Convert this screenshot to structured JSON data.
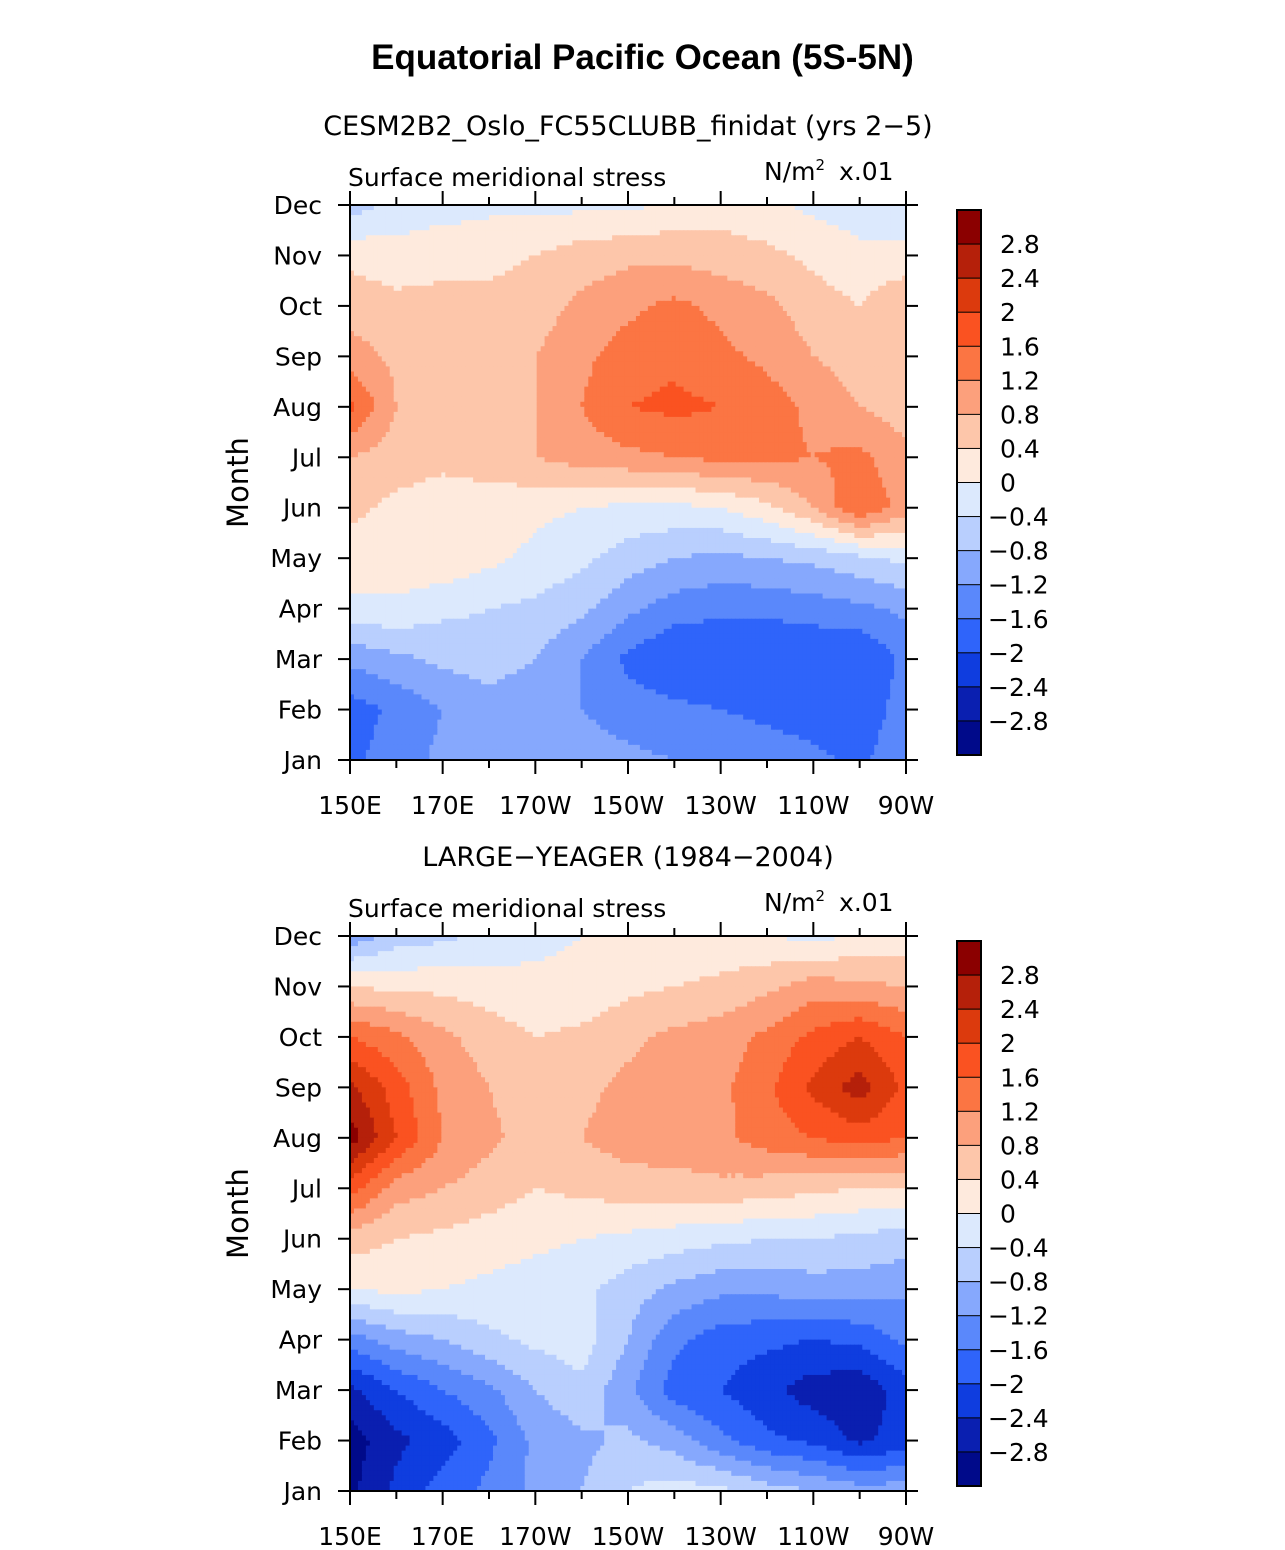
{
  "title": "Equatorial Pacific Ocean (5S-5N)",
  "colorbar": {
    "tick_labels": [
      "2.8",
      "2.4",
      "2",
      "1.6",
      "1.2",
      "0.8",
      "0.4",
      "0",
      "−0.4",
      "−0.8",
      "−1.2",
      "−1.6",
      "−2",
      "−2.4",
      "−2.8"
    ],
    "colors": [
      "#8b0000",
      "#b5200a",
      "#dc3a0d",
      "#fa5221",
      "#fb7543",
      "#fca07c",
      "#fdc6aa",
      "#feeadd",
      "#dce9fd",
      "#b9cffe",
      "#86a8fd",
      "#5a88fb",
      "#2f64fa",
      "#0f3ddf",
      "#0a1fb0",
      "#000a8a"
    ]
  },
  "chart_data": [
    {
      "type": "heatmap",
      "subtitle": "CESM2B2_Oslo_FC55CLUBB_finidat (yrs 2−5)",
      "left_label": "Surface meridional stress",
      "units_main": "N/m",
      "units_sup": "2",
      "units_scale": "x.01",
      "xlabel": "",
      "ylabel": "Month",
      "x_ticks": [
        "150E",
        "170E",
        "170W",
        "150W",
        "130W",
        "110W",
        "90W"
      ],
      "x_ticks_deg": [
        150,
        170,
        190,
        210,
        230,
        250,
        270
      ],
      "y_ticks": [
        "Jan",
        "Feb",
        "Mar",
        "Apr",
        "May",
        "Jun",
        "Jul",
        "Aug",
        "Sep",
        "Oct",
        "Nov",
        "Dec"
      ],
      "xlim": [
        150,
        270
      ],
      "contour_levels": [
        -2.8,
        -2.4,
        -2,
        -1.6,
        -1.2,
        -0.8,
        -0.4,
        0,
        0.4,
        0.8,
        1.2,
        1.6,
        2,
        2.4,
        2.8
      ],
      "grid_x": [
        150,
        160,
        170,
        180,
        190,
        200,
        210,
        220,
        230,
        240,
        250,
        260,
        270
      ],
      "values": [
        [
          -1.7,
          -1.4,
          -1.1,
          -0.9,
          -0.9,
          -1.0,
          -1.1,
          -1.2,
          -1.3,
          -1.4,
          -1.5,
          -1.7,
          -1.2
        ],
        [
          -1.8,
          -1.5,
          -1.2,
          -1.0,
          -1.1,
          -1.2,
          -1.4,
          -1.5,
          -1.6,
          -1.7,
          -1.8,
          -2.0,
          -1.3
        ],
        [
          -1.1,
          -0.9,
          -0.7,
          -0.6,
          -0.8,
          -1.2,
          -1.7,
          -2.0,
          -2.0,
          -2.0,
          -2.0,
          -2.0,
          -1.5
        ],
        [
          -0.1,
          -0.1,
          -0.3,
          -0.4,
          -0.5,
          -0.7,
          -1.1,
          -1.4,
          -1.5,
          -1.5,
          -1.4,
          -1.3,
          -1.1
        ],
        [
          0.2,
          0.3,
          0.3,
          0.1,
          -0.1,
          -0.3,
          -0.6,
          -0.8,
          -0.9,
          -0.8,
          -0.7,
          -0.5,
          -0.3
        ],
        [
          0.5,
          0.3,
          0.2,
          0.2,
          0.1,
          0.0,
          -0.1,
          -0.1,
          0.0,
          0.3,
          0.8,
          1.6,
          1.0
        ],
        [
          0.8,
          0.6,
          0.5,
          0.6,
          0.8,
          1.0,
          1.1,
          1.2,
          1.3,
          1.3,
          1.2,
          1.3,
          0.9
        ],
        [
          1.7,
          0.8,
          0.7,
          0.7,
          0.8,
          1.2,
          1.6,
          1.7,
          1.6,
          1.4,
          1.1,
          0.8,
          0.6
        ],
        [
          1.0,
          0.7,
          0.6,
          0.6,
          0.8,
          1.1,
          1.4,
          1.5,
          1.3,
          1.1,
          0.8,
          0.6,
          0.5
        ],
        [
          0.6,
          0.5,
          0.5,
          0.5,
          0.6,
          0.9,
          1.1,
          1.3,
          1.1,
          0.9,
          0.6,
          0.4,
          0.8
        ],
        [
          0.3,
          0.2,
          0.3,
          0.3,
          0.4,
          0.6,
          0.7,
          0.7,
          0.6,
          0.5,
          0.3,
          0.1,
          0.1
        ],
        [
          -0.6,
          -0.3,
          -0.2,
          -0.1,
          -0.1,
          -0.1,
          -0.1,
          0.1,
          0.2,
          0.1,
          -0.1,
          -0.2,
          -0.2
        ]
      ]
    },
    {
      "type": "heatmap",
      "subtitle": "LARGE−YEAGER (1984−2004)",
      "left_label": "Surface meridional stress",
      "units_main": "N/m",
      "units_sup": "2",
      "units_scale": "x.01",
      "xlabel": "",
      "ylabel": "Month",
      "x_ticks": [
        "150E",
        "170E",
        "170W",
        "150W",
        "130W",
        "110W",
        "90W"
      ],
      "x_ticks_deg": [
        150,
        170,
        190,
        210,
        230,
        250,
        270
      ],
      "y_ticks": [
        "Jan",
        "Feb",
        "Mar",
        "Apr",
        "May",
        "Jun",
        "Jul",
        "Aug",
        "Sep",
        "Oct",
        "Nov",
        "Dec"
      ],
      "xlim": [
        150,
        270
      ],
      "contour_levels": [
        -2.8,
        -2.4,
        -2,
        -1.6,
        -1.2,
        -0.8,
        -0.4,
        0,
        0.4,
        0.8,
        1.2,
        1.6,
        2,
        2.4,
        2.8
      ],
      "grid_x": [
        150,
        160,
        170,
        180,
        190,
        200,
        210,
        220,
        230,
        240,
        250,
        260,
        270
      ],
      "values": [
        [
          -2.9,
          -2.3,
          -1.8,
          -1.5,
          -1.1,
          -0.8,
          -0.4,
          -0.2,
          -0.3,
          -0.6,
          -0.8,
          -1.0,
          -1.0
        ],
        [
          -3.0,
          -2.5,
          -2.2,
          -1.7,
          -1.1,
          -0.9,
          -0.7,
          -1.0,
          -1.5,
          -1.9,
          -2.1,
          -2.5,
          -2.2
        ],
        [
          -2.5,
          -2.0,
          -1.6,
          -1.3,
          -0.8,
          -0.5,
          -1.1,
          -1.8,
          -2.0,
          -2.3,
          -2.6,
          -2.7,
          -2.2
        ],
        [
          -1.4,
          -1.0,
          -0.8,
          -0.5,
          -0.3,
          -0.2,
          -0.8,
          -1.5,
          -1.8,
          -1.9,
          -2.0,
          -1.9,
          -1.5
        ],
        [
          0.0,
          0.1,
          0.0,
          -0.1,
          -0.2,
          -0.3,
          -0.6,
          -0.9,
          -1.1,
          -1.1,
          -1.0,
          -1.0,
          -1.1
        ],
        [
          0.6,
          0.4,
          0.3,
          0.2,
          0.1,
          0.0,
          -0.1,
          -0.2,
          -0.3,
          -0.4,
          -0.4,
          -0.5,
          -0.6
        ],
        [
          1.8,
          1.0,
          0.8,
          0.6,
          0.4,
          0.5,
          0.6,
          0.6,
          0.7,
          0.6,
          0.5,
          0.4,
          0.4
        ],
        [
          3.0,
          2.0,
          1.2,
          0.9,
          0.6,
          0.8,
          1.0,
          1.1,
          1.1,
          1.4,
          1.6,
          1.8,
          1.6
        ],
        [
          2.5,
          1.8,
          1.1,
          0.8,
          0.5,
          0.7,
          0.9,
          1.0,
          1.1,
          1.5,
          2.1,
          2.6,
          1.9
        ],
        [
          1.6,
          1.3,
          0.9,
          0.6,
          0.4,
          0.5,
          0.7,
          0.9,
          1.0,
          1.3,
          1.7,
          2.0,
          1.6
        ],
        [
          0.4,
          0.3,
          0.3,
          0.2,
          0.1,
          0.1,
          0.3,
          0.4,
          0.5,
          0.7,
          1.0,
          0.9,
          0.8
        ],
        [
          -1.1,
          -0.6,
          -0.5,
          -0.3,
          -0.1,
          0.0,
          0.1,
          0.1,
          0.1,
          0.0,
          -0.1,
          0.0,
          0.1
        ]
      ]
    }
  ]
}
